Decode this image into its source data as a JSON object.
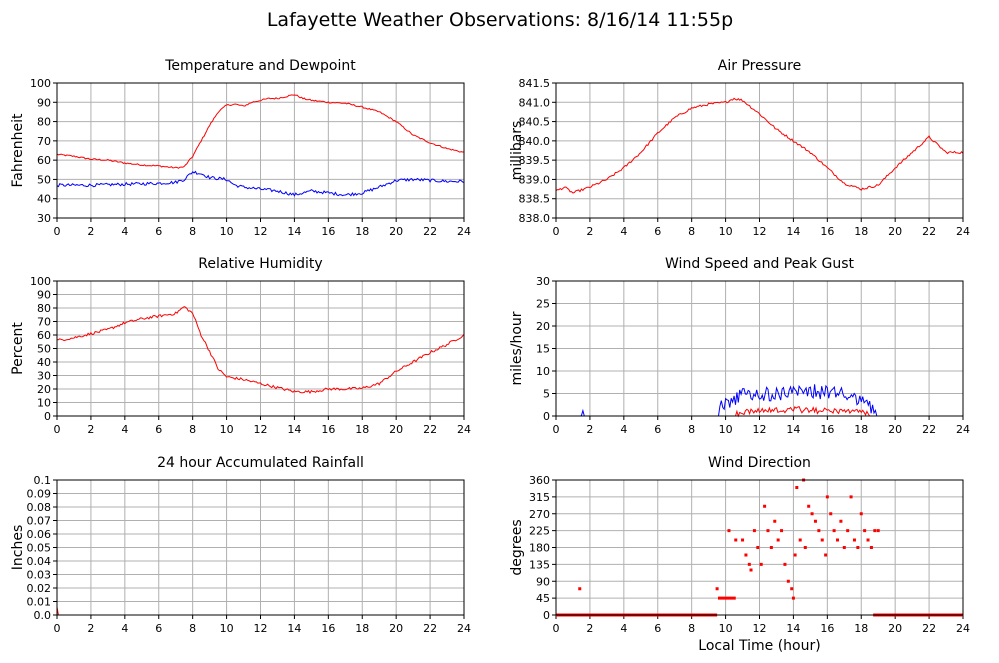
{
  "page": {
    "title": "Lafayette Weather Observations: 8/16/14 11:55p"
  },
  "colors": {
    "red": "#ff0000",
    "blue": "#0000ff",
    "grid": "#b0b0b0",
    "axis": "#000000"
  },
  "chart_data": [
    {
      "id": "temp",
      "type": "line",
      "title": "Temperature and Dewpoint",
      "ylabel": "Fahrenheit",
      "xlabel": "",
      "xlim": [
        0,
        24
      ],
      "ylim": [
        30,
        100
      ],
      "xticks": [
        0,
        2,
        4,
        6,
        8,
        10,
        12,
        14,
        16,
        18,
        20,
        22,
        24
      ],
      "yticks": [
        "30",
        "40",
        "50",
        "60",
        "70",
        "80",
        "90",
        "100"
      ],
      "grid": true,
      "series": [
        {
          "color": "#ff0000",
          "noise": 0.4,
          "points": [
            [
              0,
              63
            ],
            [
              1,
              62
            ],
            [
              2,
              60.5
            ],
            [
              3,
              60
            ],
            [
              4,
              58.5
            ],
            [
              5,
              57.5
            ],
            [
              6,
              57
            ],
            [
              7,
              56
            ],
            [
              7.5,
              56.5
            ],
            [
              8,
              62
            ],
            [
              8.5,
              70
            ],
            [
              9,
              78
            ],
            [
              9.5,
              85
            ],
            [
              10,
              88.5
            ],
            [
              10.5,
              89
            ],
            [
              11,
              88
            ],
            [
              11.5,
              90
            ],
            [
              12,
              91
            ],
            [
              12.5,
              92
            ],
            [
              13,
              92
            ],
            [
              13.5,
              93
            ],
            [
              14,
              94
            ],
            [
              14.5,
              92
            ],
            [
              15,
              91
            ],
            [
              16,
              90
            ],
            [
              17,
              89.5
            ],
            [
              18,
              87.5
            ],
            [
              19,
              85
            ],
            [
              20,
              80
            ],
            [
              21,
              73
            ],
            [
              22,
              69
            ],
            [
              23,
              66
            ],
            [
              24,
              64
            ]
          ]
        },
        {
          "color": "#0000ff",
          "noise": 0.8,
          "points": [
            [
              0,
              47
            ],
            [
              2,
              47
            ],
            [
              4,
              47.5
            ],
            [
              6,
              48
            ],
            [
              7,
              48.5
            ],
            [
              7.5,
              50
            ],
            [
              8,
              54
            ],
            [
              8.5,
              53
            ],
            [
              9,
              51
            ],
            [
              10,
              50
            ],
            [
              10.5,
              47
            ],
            [
              11,
              46
            ],
            [
              12,
              45
            ],
            [
              13,
              44
            ],
            [
              14,
              42
            ],
            [
              15,
              44
            ],
            [
              16,
              43
            ],
            [
              17,
              42
            ],
            [
              18,
              43
            ],
            [
              19,
              46
            ],
            [
              20,
              49.5
            ],
            [
              21,
              50
            ],
            [
              22,
              49.5
            ],
            [
              23,
              49
            ],
            [
              24,
              49
            ]
          ]
        }
      ]
    },
    {
      "id": "pres",
      "type": "line",
      "title": "Air Pressure",
      "ylabel": "millibars",
      "xlabel": "",
      "xlim": [
        0,
        24
      ],
      "ylim": [
        838,
        841.5
      ],
      "xticks": [
        0,
        2,
        4,
        6,
        8,
        10,
        12,
        14,
        16,
        18,
        20,
        22,
        24
      ],
      "yticks": [
        "838.0",
        "838.5",
        "839.0",
        "839.5",
        "840.0",
        "840.5",
        "841.0",
        "841.5"
      ],
      "grid": true,
      "series": [
        {
          "color": "#ff0000",
          "noise": 0.03,
          "points": [
            [
              0,
              838.7
            ],
            [
              0.5,
              838.8
            ],
            [
              1,
              838.65
            ],
            [
              2,
              838.8
            ],
            [
              3,
              839.0
            ],
            [
              4,
              839.3
            ],
            [
              5,
              839.7
            ],
            [
              6,
              840.2
            ],
            [
              7,
              840.6
            ],
            [
              8,
              840.85
            ],
            [
              9,
              840.95
            ],
            [
              10,
              841.0
            ],
            [
              10.5,
              841.1
            ],
            [
              11,
              841.05
            ],
            [
              12,
              840.7
            ],
            [
              13,
              840.3
            ],
            [
              14,
              840.0
            ],
            [
              15,
              839.7
            ],
            [
              16,
              839.3
            ],
            [
              17,
              838.9
            ],
            [
              18,
              838.75
            ],
            [
              19,
              838.85
            ],
            [
              20,
              839.3
            ],
            [
              21,
              839.7
            ],
            [
              22,
              840.1
            ],
            [
              23,
              839.7
            ],
            [
              24,
              839.7
            ]
          ]
        }
      ]
    },
    {
      "id": "rh",
      "type": "line",
      "title": "Relative Humidity",
      "ylabel": "Percent",
      "xlabel": "",
      "xlim": [
        0,
        24
      ],
      "ylim": [
        0,
        100
      ],
      "xticks": [
        0,
        2,
        4,
        6,
        8,
        10,
        12,
        14,
        16,
        18,
        20,
        22,
        24
      ],
      "yticks": [
        "0",
        "10",
        "20",
        "30",
        "40",
        "50",
        "60",
        "70",
        "80",
        "90",
        "100"
      ],
      "grid": true,
      "series": [
        {
          "color": "#ff0000",
          "noise": 1.0,
          "points": [
            [
              0,
              56
            ],
            [
              1,
              58
            ],
            [
              2,
              61
            ],
            [
              3,
              64
            ],
            [
              4,
              69
            ],
            [
              5,
              72
            ],
            [
              6,
              74
            ],
            [
              7,
              76
            ],
            [
              7.5,
              81
            ],
            [
              8,
              76
            ],
            [
              8.5,
              60
            ],
            [
              9,
              48
            ],
            [
              9.5,
              35
            ],
            [
              10,
              29
            ],
            [
              11,
              27
            ],
            [
              12,
              24
            ],
            [
              13,
              21
            ],
            [
              14,
              18
            ],
            [
              15,
              18
            ],
            [
              16,
              20
            ],
            [
              17,
              20
            ],
            [
              18,
              20.5
            ],
            [
              19,
              24
            ],
            [
              20,
              33
            ],
            [
              21,
              40
            ],
            [
              22,
              47
            ],
            [
              23,
              53
            ],
            [
              24,
              60
            ]
          ]
        }
      ]
    },
    {
      "id": "wind",
      "type": "line",
      "title": "Wind Speed and Peak Gust",
      "ylabel": "miles/hour",
      "xlabel": "",
      "xlim": [
        0,
        24
      ],
      "ylim": [
        0,
        30
      ],
      "xticks": [
        0,
        2,
        4,
        6,
        8,
        10,
        12,
        14,
        16,
        18,
        20,
        22,
        24
      ],
      "yticks": [
        "0",
        "5",
        "10",
        "15",
        "20",
        "25",
        "30"
      ],
      "grid": true,
      "series": [
        {
          "color": "#0000ff",
          "noise": 2.2,
          "nonneg": true,
          "points": [
            [
              0,
              0
            ],
            [
              1.4,
              0
            ],
            [
              1.5,
              1
            ],
            [
              1.6,
              0
            ],
            [
              9.5,
              0
            ],
            [
              9.7,
              2
            ],
            [
              10.5,
              3
            ],
            [
              11,
              4
            ],
            [
              12,
              4
            ],
            [
              13,
              4.5
            ],
            [
              14,
              5
            ],
            [
              15,
              5
            ],
            [
              16,
              4.5
            ],
            [
              17,
              4
            ],
            [
              18,
              3.5
            ],
            [
              18.5,
              2
            ],
            [
              19,
              0
            ],
            [
              24,
              0
            ]
          ]
        },
        {
          "color": "#ff0000",
          "noise": 0.9,
          "nonneg": true,
          "points": [
            [
              0,
              0
            ],
            [
              10.5,
              0
            ],
            [
              11,
              0.5
            ],
            [
              12,
              1
            ],
            [
              13,
              1
            ],
            [
              14,
              1.3
            ],
            [
              15,
              1
            ],
            [
              16,
              1
            ],
            [
              17,
              0.8
            ],
            [
              18,
              0.5
            ],
            [
              18.5,
              0
            ],
            [
              24,
              0
            ]
          ]
        }
      ]
    },
    {
      "id": "rain",
      "type": "line",
      "title": "24 hour Accumulated Rainfall",
      "ylabel": "Inches",
      "xlabel": "",
      "xlim": [
        0,
        24
      ],
      "ylim": [
        0,
        0.1
      ],
      "xticks": [
        0,
        2,
        4,
        6,
        8,
        10,
        12,
        14,
        16,
        18,
        20,
        22,
        24
      ],
      "yticks": [
        "0.0",
        "0.01",
        "0.02",
        "0.03",
        "0.04",
        "0.05",
        "0.06",
        "0.07",
        "0.08",
        "0.09",
        "0.1"
      ],
      "grid": true,
      "series": [
        {
          "color": "#ff0000",
          "noise": 0,
          "points": [
            [
              0,
              0.006
            ],
            [
              0.08,
              0.0
            ],
            [
              24,
              0.0
            ]
          ]
        }
      ]
    },
    {
      "id": "dir",
      "type": "scatter",
      "title": "Wind Direction",
      "ylabel": "degrees",
      "xlabel": "Local Time (hour)",
      "xlim": [
        0,
        24
      ],
      "ylim": [
        0,
        360
      ],
      "xticks": [
        0,
        2,
        4,
        6,
        8,
        10,
        12,
        14,
        16,
        18,
        20,
        22,
        24
      ],
      "yticks": [
        "0",
        "45",
        "90",
        "135",
        "180",
        "225",
        "270",
        "315",
        "360"
      ],
      "grid": true,
      "series": [
        {
          "color": "#ff0000",
          "points": [
            [
              1.4,
              70
            ],
            [
              9.5,
              70
            ],
            [
              10.2,
              225
            ],
            [
              10.6,
              200
            ],
            [
              11,
              200
            ],
            [
              11.2,
              160
            ],
            [
              11.4,
              135
            ],
            [
              11.5,
              120
            ],
            [
              11.7,
              225
            ],
            [
              11.9,
              180
            ],
            [
              12.1,
              135
            ],
            [
              12.3,
              290
            ],
            [
              12.5,
              225
            ],
            [
              12.7,
              180
            ],
            [
              12.9,
              250
            ],
            [
              13.1,
              200
            ],
            [
              13.3,
              225
            ],
            [
              13.5,
              135
            ],
            [
              13.7,
              90
            ],
            [
              13.9,
              70
            ],
            [
              14.0,
              45
            ],
            [
              14.1,
              160
            ],
            [
              14.2,
              340
            ],
            [
              14.4,
              200
            ],
            [
              14.6,
              360
            ],
            [
              14.7,
              180
            ],
            [
              14.9,
              290
            ],
            [
              15.1,
              270
            ],
            [
              15.3,
              250
            ],
            [
              15.5,
              225
            ],
            [
              15.7,
              200
            ],
            [
              15.9,
              160
            ],
            [
              16.0,
              315
            ],
            [
              16.2,
              270
            ],
            [
              16.4,
              225
            ],
            [
              16.6,
              200
            ],
            [
              16.8,
              250
            ],
            [
              17.0,
              180
            ],
            [
              17.2,
              225
            ],
            [
              17.4,
              315
            ],
            [
              17.6,
              200
            ],
            [
              17.8,
              180
            ],
            [
              18.0,
              270
            ],
            [
              18.2,
              225
            ],
            [
              18.4,
              200
            ],
            [
              18.6,
              180
            ],
            [
              18.8,
              225
            ],
            [
              19.0,
              225
            ]
          ]
        }
      ],
      "segments": [
        {
          "color": "#ff0000",
          "from": 0,
          "to": 9.5,
          "value": 0
        },
        {
          "color": "#ff0000",
          "from": 9.55,
          "to": 10.6,
          "value": 45
        },
        {
          "color": "#ff0000",
          "from": 18.7,
          "to": 24,
          "value": 0
        }
      ]
    }
  ]
}
